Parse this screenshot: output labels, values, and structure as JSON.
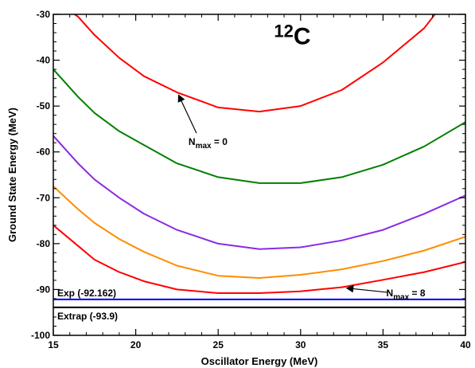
{
  "chart_data": {
    "type": "line",
    "title": "",
    "xlabel": "Oscillator Energy (MeV)",
    "ylabel": "Ground State Energy (MeV)",
    "xlim": [
      15,
      40
    ],
    "ylim": [
      -100,
      -30
    ],
    "xticks": [
      15,
      20,
      25,
      30,
      35,
      40
    ],
    "yticks": [
      -100,
      -90,
      -80,
      -70,
      -60,
      -50,
      -40,
      -30
    ],
    "grid": false,
    "series": [
      {
        "color": "#ff0000",
        "x": [
          15,
          16.5,
          17.5,
          19,
          20.5,
          22.5,
          25,
          27.5,
          30,
          32.5,
          35,
          37.5,
          39
        ],
        "y": [
          -27,
          -30.5,
          -34.5,
          -39.5,
          -43.5,
          -47,
          -50.3,
          -51.2,
          -50,
          -46.5,
          -40.5,
          -33,
          -26
        ]
      },
      {
        "color": "#008000",
        "x": [
          15,
          16.5,
          17.5,
          19,
          20.5,
          22.5,
          25,
          27.5,
          30,
          32.5,
          35,
          37.5,
          40
        ],
        "y": [
          -42,
          -48,
          -51.5,
          -55.5,
          -58.5,
          -62.5,
          -65.5,
          -66.8,
          -66.8,
          -65.5,
          -62.8,
          -58.8,
          -53.5
        ]
      },
      {
        "color": "#8a2be2",
        "x": [
          15,
          16.5,
          17.5,
          19,
          20.5,
          22.5,
          25,
          27.5,
          30,
          32.5,
          35,
          37.5,
          40
        ],
        "y": [
          -56.5,
          -62.5,
          -66,
          -70,
          -73.5,
          -77,
          -80,
          -81.2,
          -80.8,
          -79.3,
          -77,
          -73.5,
          -69.5
        ]
      },
      {
        "color": "#ff8c00",
        "x": [
          15,
          16.5,
          17.5,
          19,
          20.5,
          22.5,
          25,
          27.5,
          30,
          32.5,
          35,
          37.5,
          40
        ],
        "y": [
          -67.5,
          -72.5,
          -75.5,
          -79,
          -81.8,
          -84.8,
          -87,
          -87.5,
          -86.8,
          -85.6,
          -83.8,
          -81.5,
          -78.5
        ]
      },
      {
        "color": "#ff0000",
        "x": [
          15,
          16.5,
          17.5,
          19,
          20.5,
          22.5,
          25,
          27.5,
          30,
          32.5,
          35,
          37.5,
          40
        ],
        "y": [
          -76,
          -80.5,
          -83.5,
          -86.2,
          -88.2,
          -90,
          -90.8,
          -90.8,
          -90.4,
          -89.5,
          -87.9,
          -86.2,
          -84
        ]
      }
    ],
    "hlines": [
      {
        "label": "Exp (-92.162)",
        "y": -92.162,
        "color": "#0000ff"
      },
      {
        "label": "Extrap (-93.9)",
        "y": -93.9,
        "color": "#000000"
      }
    ],
    "annotations": [
      {
        "label_main": "N",
        "label_sub": "max",
        "label_rest": "= 0",
        "x": 23.2,
        "y": -58.5,
        "arrow_to_x": 22.6,
        "arrow_to_y": -47.6
      },
      {
        "label_main": "N",
        "label_sub": "max",
        "label_rest": "= 8",
        "x": 35.2,
        "y": -91.5,
        "arrow_to_x": 32.8,
        "arrow_to_y": -89.7
      }
    ],
    "nucleus_label": {
      "mass": "12",
      "symbol": "C",
      "x": 29.5,
      "y": -36.5
    }
  }
}
